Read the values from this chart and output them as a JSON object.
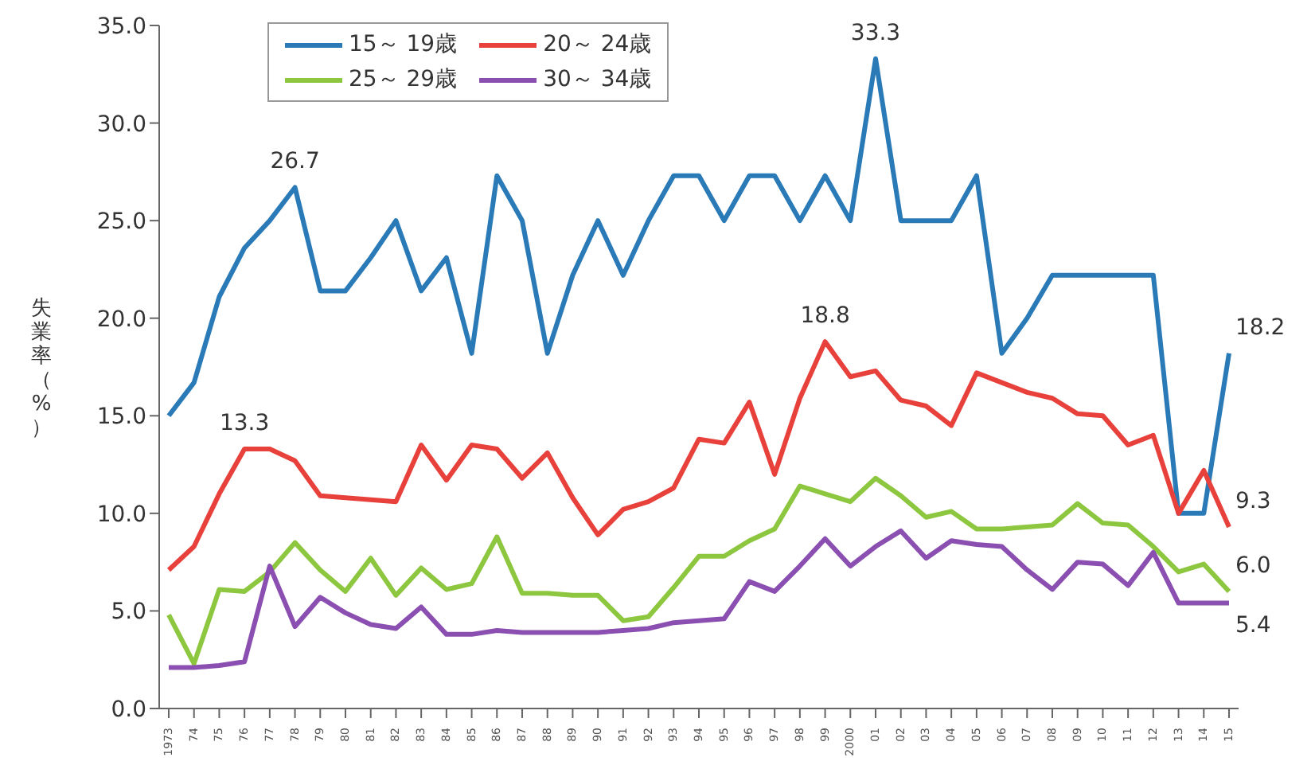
{
  "chart_data": {
    "type": "line",
    "ylabel": "失業率（%）",
    "categories": [
      "1973",
      "74",
      "75",
      "76",
      "77",
      "78",
      "79",
      "80",
      "81",
      "82",
      "83",
      "84",
      "85",
      "86",
      "87",
      "88",
      "89",
      "90",
      "91",
      "92",
      "93",
      "94",
      "95",
      "96",
      "97",
      "98",
      "99",
      "2000",
      "01",
      "02",
      "03",
      "04",
      "05",
      "06",
      "07",
      "08",
      "09",
      "10",
      "11",
      "12",
      "13",
      "14",
      "15"
    ],
    "series": [
      {
        "name": "15～ 19歳",
        "color": "#2a7ab8",
        "values": [
          15.0,
          16.7,
          21.1,
          23.6,
          25.0,
          26.7,
          21.4,
          21.4,
          23.1,
          25.0,
          21.4,
          23.1,
          18.2,
          27.3,
          25.0,
          18.2,
          22.2,
          25.0,
          22.2,
          25.0,
          27.3,
          27.3,
          25.0,
          27.3,
          27.3,
          25.0,
          27.3,
          25.0,
          33.3,
          25.0,
          25.0,
          25.0,
          27.3,
          18.2,
          20.0,
          22.2,
          22.2,
          22.2,
          22.2,
          22.2,
          10.0,
          10.0,
          18.2
        ],
        "value_labels": [
          null,
          null,
          null,
          null,
          null,
          "26.7",
          null,
          null,
          null,
          null,
          null,
          null,
          null,
          null,
          null,
          null,
          null,
          null,
          null,
          null,
          null,
          null,
          null,
          null,
          null,
          null,
          null,
          null,
          "33.3",
          null,
          null,
          null,
          null,
          null,
          null,
          null,
          null,
          null,
          null,
          null,
          null,
          null,
          "18.2"
        ]
      },
      {
        "name": "20～ 24歳",
        "color": "#e8413c",
        "values": [
          7.1,
          8.3,
          11.0,
          13.3,
          13.3,
          12.7,
          10.9,
          10.8,
          10.7,
          10.6,
          13.5,
          11.7,
          13.5,
          13.3,
          11.8,
          13.1,
          10.8,
          8.9,
          10.2,
          10.6,
          11.3,
          13.8,
          13.6,
          15.7,
          12.0,
          15.9,
          18.8,
          17.0,
          17.3,
          15.8,
          15.5,
          14.5,
          17.2,
          16.7,
          16.2,
          15.9,
          15.1,
          15.0,
          13.5,
          14.0,
          10.0,
          12.2,
          9.3
        ],
        "value_labels": [
          null,
          null,
          null,
          "13.3",
          null,
          null,
          null,
          null,
          null,
          null,
          null,
          null,
          null,
          null,
          null,
          null,
          null,
          null,
          null,
          null,
          null,
          null,
          null,
          null,
          null,
          null,
          "18.8",
          null,
          null,
          null,
          null,
          null,
          null,
          null,
          null,
          null,
          null,
          null,
          null,
          null,
          null,
          null,
          "9.3"
        ]
      },
      {
        "name": "25～ 29歳",
        "color": "#8dc63f",
        "values": [
          4.8,
          2.3,
          6.1,
          6.0,
          7.0,
          8.5,
          7.1,
          6.0,
          7.7,
          5.8,
          7.2,
          6.1,
          6.4,
          8.8,
          5.9,
          5.9,
          5.8,
          5.8,
          4.5,
          4.7,
          6.2,
          7.8,
          7.8,
          8.6,
          9.2,
          11.4,
          11.0,
          10.6,
          11.8,
          10.9,
          9.8,
          10.1,
          9.2,
          9.2,
          9.3,
          9.4,
          10.5,
          9.5,
          9.4,
          8.3,
          7.0,
          7.4,
          6.0
        ],
        "value_labels": [
          null,
          null,
          null,
          null,
          null,
          null,
          null,
          null,
          null,
          null,
          null,
          null,
          null,
          null,
          null,
          null,
          null,
          null,
          null,
          null,
          null,
          null,
          null,
          null,
          null,
          null,
          null,
          null,
          null,
          null,
          null,
          null,
          null,
          null,
          null,
          null,
          null,
          null,
          null,
          null,
          null,
          null,
          "6.0"
        ]
      },
      {
        "name": "30～ 34歳",
        "color": "#8a4fb0",
        "values": [
          2.1,
          2.1,
          2.2,
          2.4,
          7.3,
          4.2,
          5.7,
          4.9,
          4.3,
          4.1,
          5.2,
          3.8,
          3.8,
          4.0,
          3.9,
          3.9,
          3.9,
          3.9,
          4.0,
          4.1,
          4.4,
          4.5,
          4.6,
          6.5,
          6.0,
          7.3,
          8.7,
          7.3,
          8.3,
          9.1,
          7.7,
          8.6,
          8.4,
          8.3,
          7.1,
          6.1,
          7.5,
          7.4,
          6.3,
          8.0,
          5.4,
          5.4,
          5.4
        ],
        "value_labels": [
          null,
          null,
          null,
          null,
          null,
          null,
          null,
          null,
          null,
          null,
          null,
          null,
          null,
          null,
          null,
          null,
          null,
          null,
          null,
          null,
          null,
          null,
          null,
          null,
          null,
          null,
          null,
          null,
          null,
          null,
          null,
          null,
          null,
          null,
          null,
          null,
          null,
          null,
          null,
          null,
          null,
          null,
          "5.4"
        ]
      }
    ],
    "ylim": [
      0,
      35
    ],
    "yticks": [
      {
        "value": 0,
        "label": "0.0"
      },
      {
        "value": 5,
        "label": "5.0"
      },
      {
        "value": 10,
        "label": "10.0"
      },
      {
        "value": 15,
        "label": "15.0"
      },
      {
        "value": 20,
        "label": "20.0"
      },
      {
        "value": 25,
        "label": "25.0"
      },
      {
        "value": 30,
        "label": "30.0"
      },
      {
        "value": 35,
        "label": "35.0"
      }
    ],
    "legend": "top left",
    "marker": "none",
    "line_style": "solid"
  }
}
